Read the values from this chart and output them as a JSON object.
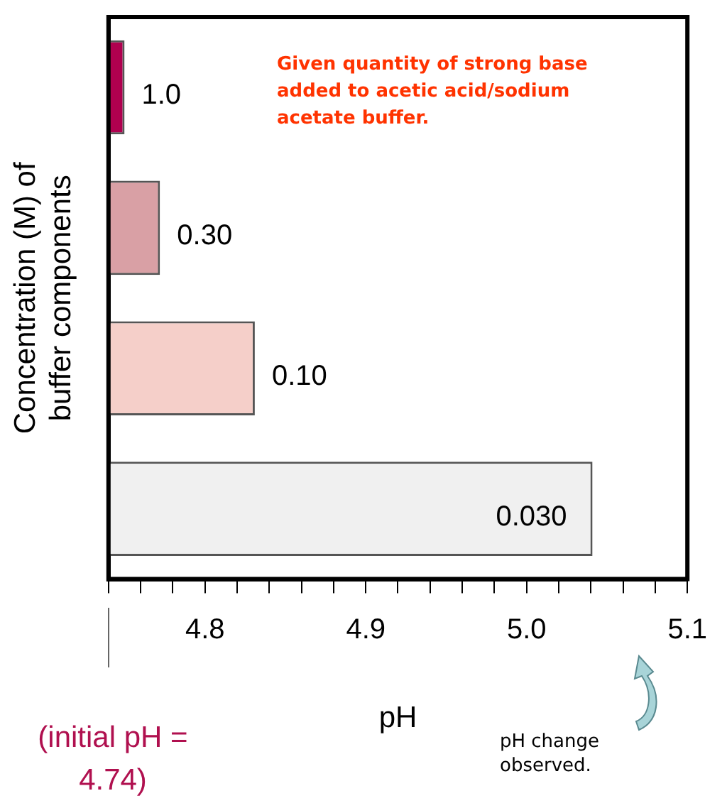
{
  "chart_data": {
    "type": "bar",
    "orientation": "horizontal",
    "categories": [
      "1.0",
      "0.30",
      "0.10",
      "0.030"
    ],
    "values": [
      4.75,
      4.772,
      4.831,
      5.041
    ],
    "colors": [
      "#b0004f",
      "#d9a0a5",
      "#f5cfc9",
      "#f0f0f0"
    ],
    "xlim": [
      4.74,
      5.1
    ],
    "xticks": [
      {
        "value": 4.74,
        "label": null
      },
      {
        "value": 4.76,
        "label": null
      },
      {
        "value": 4.78,
        "label": null
      },
      4.8,
      {
        "value": 4.82,
        "label": null
      },
      {
        "value": 4.84,
        "label": null
      },
      {
        "value": 4.86,
        "label": null
      },
      {
        "value": 4.88,
        "label": null
      },
      4.9,
      {
        "value": 4.92,
        "label": null
      },
      {
        "value": 4.94,
        "label": null
      },
      {
        "value": 4.96,
        "label": null
      },
      {
        "value": 4.98,
        "label": null
      },
      {
        "value": 5.0,
        "label": "5.0"
      },
      {
        "value": 5.02,
        "label": null
      },
      {
        "value": 5.04,
        "label": null
      },
      {
        "value": 5.06,
        "label": null
      },
      {
        "value": 5.08,
        "label": null
      },
      5.1
    ],
    "xlabel": "pH",
    "ylabel": "Concentration (M) of buffer components",
    "tick_labels": "x",
    "grid": false,
    "legend": false,
    "annotations": [
      "Given quantity of strong base added to acetic acid/sodium acetate buffer.",
      "(initial pH = 4.74)",
      "pH change observed."
    ]
  }
}
